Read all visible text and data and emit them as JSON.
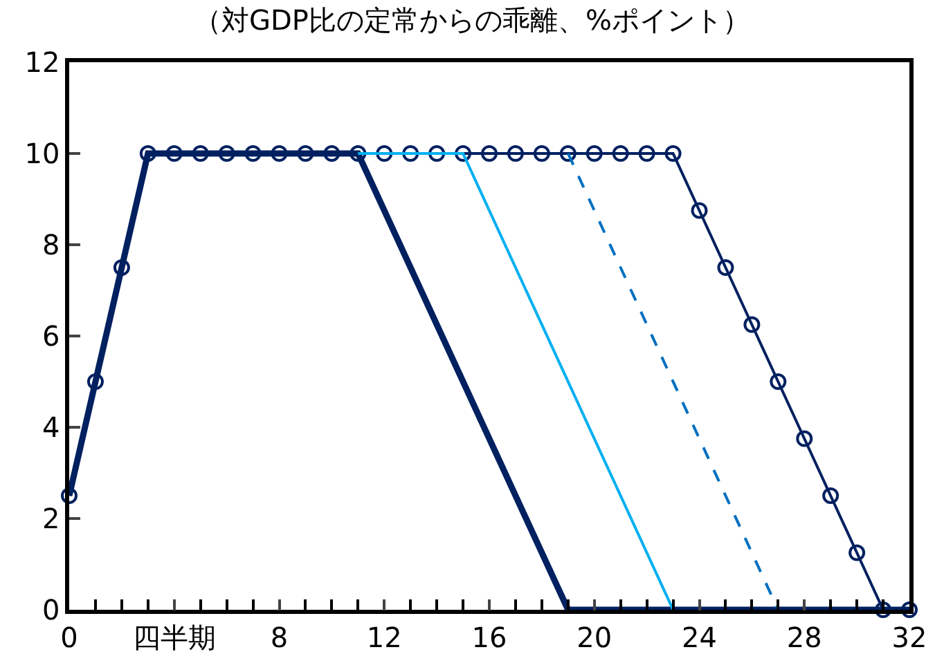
{
  "chart_data": {
    "type": "line",
    "title": "（対GDP比の定常からの乖離、%ポイント）",
    "x": [
      0,
      1,
      2,
      3,
      4,
      5,
      6,
      7,
      8,
      9,
      10,
      11,
      12,
      13,
      14,
      15,
      16,
      17,
      18,
      19,
      20,
      21,
      22,
      23,
      24,
      25,
      26,
      27,
      28,
      29,
      30,
      31,
      32
    ],
    "series": [
      {
        "color": "#002060",
        "marker": "circle",
        "line_style": "solid",
        "values": [
          2.5,
          5,
          7.5,
          10,
          10,
          10,
          10,
          10,
          10,
          10,
          10,
          10,
          10,
          10,
          10,
          10,
          10,
          10,
          10,
          10,
          10,
          10,
          10,
          10,
          8.75,
          7.5,
          6.25,
          5,
          3.75,
          2.5,
          1.25,
          0,
          0
        ]
      },
      {
        "color": "#002060",
        "marker": "none",
        "line_style": "solid",
        "values": [
          2.5,
          5,
          7.5,
          10,
          10,
          10,
          10,
          10,
          10,
          10,
          10,
          10,
          null,
          null,
          null,
          null,
          null,
          null,
          null,
          0,
          0,
          0,
          0,
          0,
          0,
          0,
          0,
          0,
          0,
          0,
          0,
          0,
          0
        ]
      },
      {
        "color": "#00b0f0",
        "marker": "none",
        "line_style": "solid",
        "values": [
          null,
          null,
          null,
          null,
          null,
          null,
          null,
          null,
          null,
          null,
          null,
          10,
          10,
          10,
          10,
          10,
          null,
          null,
          null,
          null,
          null,
          null,
          null,
          0,
          null,
          null,
          null,
          null,
          null,
          null,
          null,
          null,
          null
        ]
      },
      {
        "color": "#0070c0",
        "marker": "none",
        "line_style": "dashed",
        "values": [
          null,
          null,
          null,
          null,
          null,
          null,
          null,
          null,
          null,
          null,
          null,
          null,
          null,
          null,
          null,
          null,
          null,
          null,
          null,
          10,
          null,
          null,
          null,
          null,
          null,
          null,
          null,
          0,
          null,
          null,
          null,
          null,
          null
        ]
      }
    ],
    "xlim": [
      0,
      32
    ],
    "xticks": [
      0,
      {
        "value": 4,
        "label": "四半期"
      },
      8,
      12,
      16,
      20,
      24,
      28,
      32
    ],
    "ylim": [
      0,
      12
    ],
    "yticks": [
      0,
      2,
      4,
      6,
      8,
      10,
      12
    ]
  }
}
